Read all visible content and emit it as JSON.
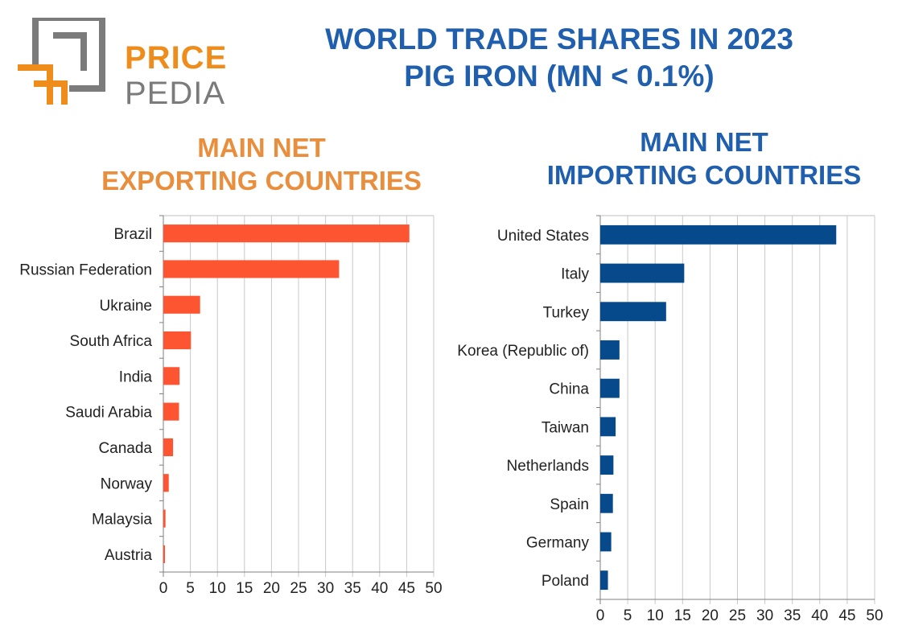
{
  "logo": {
    "line1": "PRICE",
    "line2": "PEDIA"
  },
  "title": {
    "line1": "WORLD TRADE SHARES IN 2023",
    "line2": "PIG IRON (MN < 0.1%)"
  },
  "colors": {
    "exporters": "#fd5531",
    "importers": "#064a8b",
    "exporters_heading": "#e98e3d",
    "importers_heading": "#1f5fae"
  },
  "chart_data": [
    {
      "type": "bar",
      "orientation": "horizontal",
      "title": "MAIN NET EXPORTING COUNTRIES",
      "title_lines": [
        "MAIN NET",
        "EXPORTING COUNTRIES"
      ],
      "categories": [
        "Brazil",
        "Russian Federation",
        "Ukraine",
        "South Africa",
        "India",
        "Saudi Arabia",
        "Canada",
        "Norway",
        "Malaysia",
        "Austria"
      ],
      "values": [
        45.5,
        32.5,
        6.8,
        5.1,
        3.0,
        2.9,
        1.8,
        1.0,
        0.4,
        0.3
      ],
      "xlim": [
        0,
        50
      ],
      "ticks": [
        0,
        5,
        10,
        15,
        20,
        25,
        30,
        35,
        40,
        45,
        50
      ],
      "grid": true,
      "color": "#fd5531"
    },
    {
      "type": "bar",
      "orientation": "horizontal",
      "title": "MAIN NET IMPORTING COUNTRIES",
      "title_lines": [
        "MAIN NET",
        "IMPORTING COUNTRIES"
      ],
      "categories": [
        "United States",
        "Italy",
        "Turkey",
        "Korea (Republic of)",
        "China",
        "Taiwan",
        "Netherlands",
        "Spain",
        "Germany",
        "Poland"
      ],
      "values": [
        43.0,
        15.3,
        12.0,
        3.5,
        3.5,
        2.8,
        2.4,
        2.3,
        2.0,
        1.4
      ],
      "xlim": [
        0,
        50
      ],
      "ticks": [
        0,
        5,
        10,
        15,
        20,
        25,
        30,
        35,
        40,
        45,
        50
      ],
      "grid": true,
      "color": "#064a8b"
    }
  ]
}
